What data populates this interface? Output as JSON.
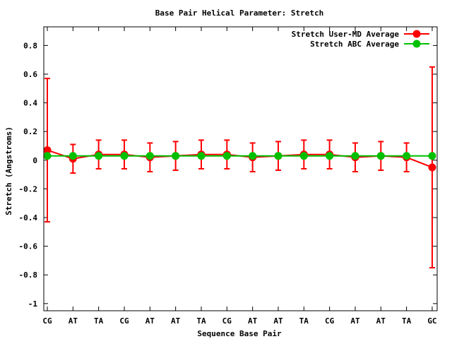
{
  "chart_data": {
    "type": "line",
    "title": "Base Pair Helical Parameter: Stretch",
    "xlabel": "Sequence Base Pair",
    "ylabel": "Stretch (Angstroms)",
    "categories": [
      "CG",
      "AT",
      "TA",
      "CG",
      "AT",
      "AT",
      "TA",
      "CG",
      "AT",
      "AT",
      "TA",
      "CG",
      "AT",
      "AT",
      "TA",
      "GC"
    ],
    "ylim": [
      -1.05,
      0.93
    ],
    "yticks": [
      -1,
      -0.8,
      -0.6,
      -0.4,
      -0.2,
      0,
      0.2,
      0.4,
      0.6,
      0.8
    ],
    "ytick_labels": [
      "-1",
      "-0.8",
      "-0.6",
      "-0.4",
      "-0.2",
      "0",
      "0.2",
      "0.4",
      "0.6",
      "0.8"
    ],
    "legend_position": "top-right",
    "series": [
      {
        "name": "Stretch User-MD Average",
        "color": "#ff0000",
        "values": [
          0.07,
          0.01,
          0.04,
          0.04,
          0.02,
          0.03,
          0.04,
          0.04,
          0.02,
          0.03,
          0.04,
          0.04,
          0.02,
          0.03,
          0.02,
          -0.05
        ],
        "err_low": [
          -0.43,
          -0.09,
          -0.06,
          -0.06,
          -0.08,
          -0.07,
          -0.06,
          -0.06,
          -0.08,
          -0.07,
          -0.06,
          -0.06,
          -0.08,
          -0.07,
          -0.08,
          -0.75
        ],
        "err_high": [
          0.57,
          0.11,
          0.14,
          0.14,
          0.12,
          0.13,
          0.14,
          0.14,
          0.12,
          0.13,
          0.14,
          0.14,
          0.12,
          0.13,
          0.12,
          0.65
        ]
      },
      {
        "name": "Stretch ABC Average",
        "color": "#00c000",
        "values": [
          0.03,
          0.03,
          0.03,
          0.03,
          0.03,
          0.03,
          0.03,
          0.03,
          0.03,
          0.03,
          0.03,
          0.03,
          0.03,
          0.03,
          0.03,
          0.03
        ]
      }
    ]
  }
}
